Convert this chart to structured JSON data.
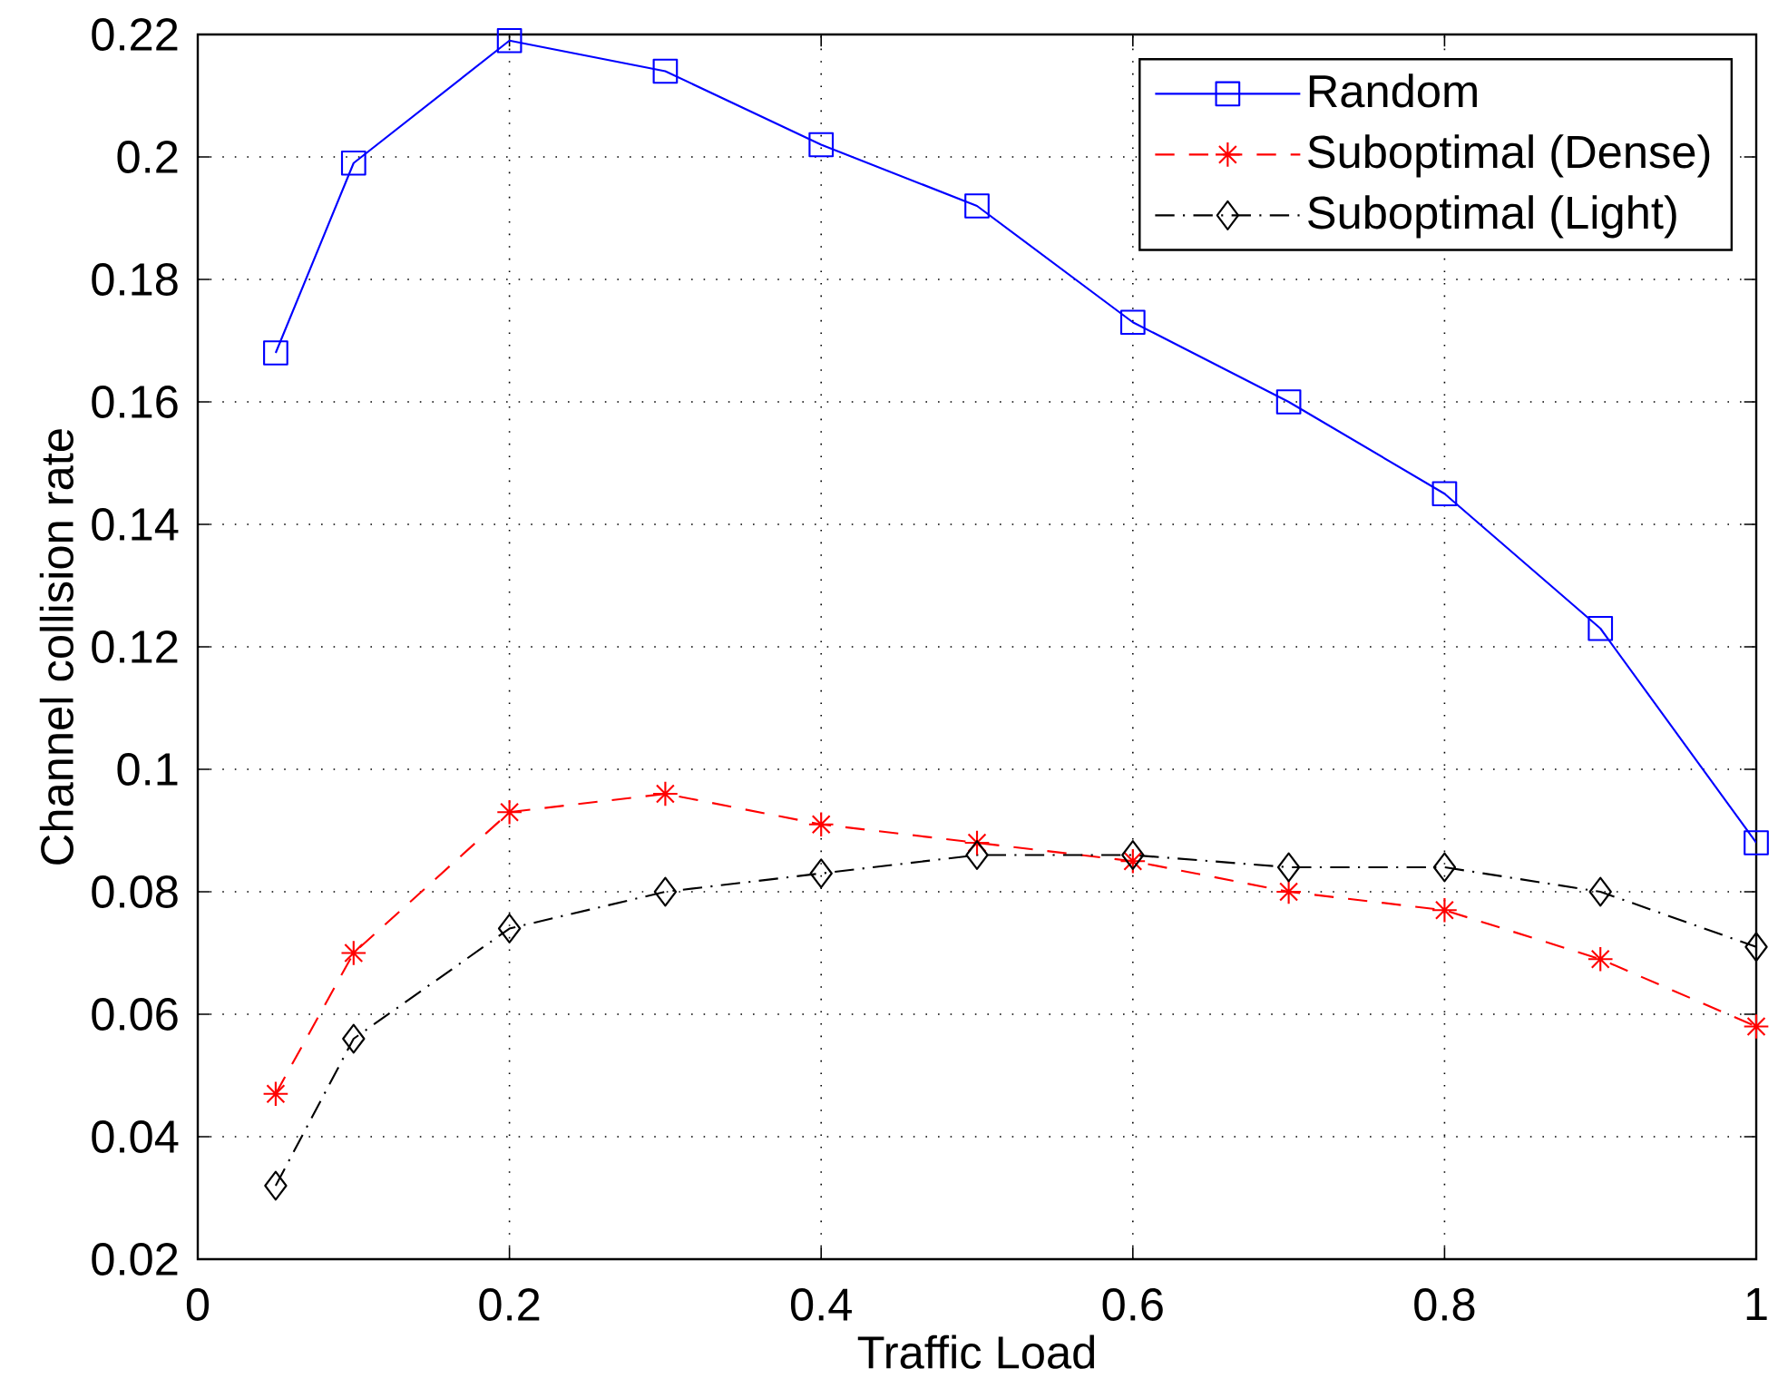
{
  "chart_data": {
    "type": "line",
    "xlabel": "Traffic Load",
    "ylabel": "Channel collision rate",
    "x": [
      0.05,
      0.1,
      0.2,
      0.3,
      0.4,
      0.5,
      0.6,
      0.7,
      0.8,
      0.9,
      1.0
    ],
    "series": [
      {
        "name": "Random",
        "color": "#0000ff",
        "marker": "square",
        "line_style": "solid",
        "values": [
          0.168,
          0.199,
          0.219,
          0.214,
          0.202,
          0.192,
          0.173,
          0.16,
          0.145,
          0.123,
          0.088
        ]
      },
      {
        "name": "Suboptimal (Dense)",
        "color": "#ff0000",
        "marker": "cross",
        "line_style": "dashed",
        "values": [
          0.047,
          0.07,
          0.093,
          0.096,
          0.091,
          0.088,
          0.085,
          0.08,
          0.077,
          0.069,
          0.058
        ]
      },
      {
        "name": "Suboptimal (Light)",
        "color": "#000000",
        "marker": "diamond",
        "line_style": "dashdot",
        "values": [
          0.032,
          0.056,
          0.074,
          0.08,
          0.083,
          0.086,
          0.086,
          0.084,
          0.084,
          0.08,
          0.071
        ]
      }
    ],
    "xlim": [
      0,
      1
    ],
    "ylim": [
      0.02,
      0.22
    ],
    "xticks": [
      0,
      0.2,
      0.4,
      0.6,
      0.8,
      1
    ],
    "yticks": [
      0.02,
      0.04,
      0.06,
      0.08,
      0.1,
      0.12,
      0.14,
      0.16,
      0.18,
      0.2,
      0.22
    ],
    "grid": true,
    "legend": "top right"
  }
}
